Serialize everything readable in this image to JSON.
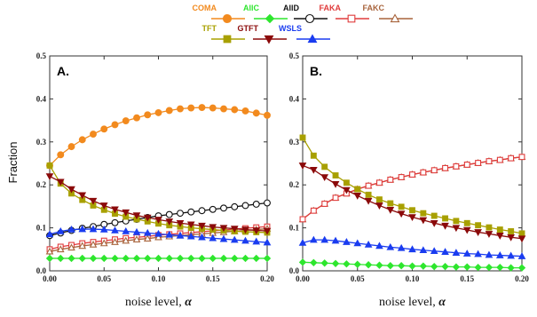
{
  "legend": [
    {
      "name": "COMA",
      "color": "#f28a1e",
      "marker": "circle-filled",
      "row": 0,
      "col": 0
    },
    {
      "name": "AllC",
      "color": "#2ee62e",
      "marker": "diamond-filled",
      "row": 0,
      "col": 1
    },
    {
      "name": "AllD",
      "color": "#111111",
      "marker": "circle-open",
      "row": 0,
      "col": 2
    },
    {
      "name": "FAKA",
      "color": "#e03b3b",
      "marker": "square-open",
      "row": 0,
      "col": 3
    },
    {
      "name": "FAKC",
      "color": "#a8643c",
      "marker": "triangle-open",
      "row": 0,
      "col": 4
    },
    {
      "name": "TFT",
      "color": "#a8a000",
      "marker": "square-filled",
      "row": 1,
      "col": 0
    },
    {
      "name": "GTFT",
      "color": "#8b0a0a",
      "marker": "triangle-down-filled",
      "row": 1,
      "col": 1
    },
    {
      "name": "WSLS",
      "color": "#1a3cf0",
      "marker": "triangle-up-filled",
      "row": 1,
      "col": 2
    }
  ],
  "chart_data": [
    {
      "type": "line",
      "panel_label": "A.",
      "xlabel": "noise level, α",
      "ylabel": "Fraction",
      "xlim": [
        0,
        0.2
      ],
      "ylim": [
        0,
        0.5
      ],
      "xticks": [
        "0.00",
        "0.05",
        "0.10",
        "0.15",
        "0.20"
      ],
      "yticks": [
        "0.0",
        "0.1",
        "0.2",
        "0.3",
        "0.4",
        "0.5"
      ],
      "x": [
        0,
        0.01,
        0.02,
        0.03,
        0.04,
        0.05,
        0.06,
        0.07,
        0.08,
        0.09,
        0.1,
        0.11,
        0.12,
        0.13,
        0.14,
        0.15,
        0.16,
        0.17,
        0.18,
        0.19,
        0.2
      ],
      "series": [
        {
          "name": "COMA",
          "values": [
            0.245,
            0.27,
            0.289,
            0.305,
            0.318,
            0.33,
            0.34,
            0.349,
            0.356,
            0.363,
            0.368,
            0.373,
            0.377,
            0.379,
            0.38,
            0.379,
            0.377,
            0.375,
            0.372,
            0.367,
            0.362
          ]
        },
        {
          "name": "AllC",
          "values": [
            0.029,
            0.029,
            0.029,
            0.029,
            0.029,
            0.029,
            0.029,
            0.029,
            0.029,
            0.029,
            0.029,
            0.029,
            0.029,
            0.029,
            0.029,
            0.029,
            0.029,
            0.029,
            0.029,
            0.029,
            0.029
          ]
        },
        {
          "name": "AllD",
          "values": [
            0.082,
            0.088,
            0.094,
            0.099,
            0.103,
            0.108,
            0.112,
            0.116,
            0.12,
            0.124,
            0.128,
            0.131,
            0.134,
            0.137,
            0.14,
            0.143,
            0.146,
            0.149,
            0.152,
            0.155,
            0.158
          ]
        },
        {
          "name": "FAKA",
          "values": [
            0.05,
            0.056,
            0.06,
            0.064,
            0.067,
            0.07,
            0.073,
            0.076,
            0.078,
            0.08,
            0.083,
            0.085,
            0.087,
            0.089,
            0.091,
            0.093,
            0.095,
            0.097,
            0.099,
            0.101,
            0.103
          ]
        },
        {
          "name": "FAKC",
          "values": [
            0.045,
            0.05,
            0.054,
            0.058,
            0.061,
            0.064,
            0.067,
            0.07,
            0.073,
            0.075,
            0.078,
            0.08,
            0.082,
            0.084,
            0.086,
            0.088,
            0.09,
            0.092,
            0.094,
            0.096,
            0.098
          ]
        },
        {
          "name": "TFT",
          "values": [
            0.245,
            0.203,
            0.18,
            0.165,
            0.152,
            0.142,
            0.133,
            0.126,
            0.12,
            0.115,
            0.11,
            0.106,
            0.103,
            0.1,
            0.098,
            0.096,
            0.094,
            0.092,
            0.091,
            0.09,
            0.089
          ]
        },
        {
          "name": "GTFT",
          "values": [
            0.22,
            0.207,
            0.19,
            0.176,
            0.163,
            0.152,
            0.143,
            0.136,
            0.129,
            0.124,
            0.119,
            0.115,
            0.111,
            0.108,
            0.105,
            0.102,
            0.1,
            0.098,
            0.096,
            0.094,
            0.093
          ]
        },
        {
          "name": "WSLS",
          "values": [
            0.085,
            0.092,
            0.096,
            0.097,
            0.097,
            0.096,
            0.094,
            0.092,
            0.09,
            0.088,
            0.086,
            0.084,
            0.082,
            0.08,
            0.078,
            0.076,
            0.074,
            0.072,
            0.07,
            0.068,
            0.066
          ]
        }
      ]
    },
    {
      "type": "line",
      "panel_label": "B.",
      "xlabel": "noise level, α",
      "ylabel": "",
      "xlim": [
        0,
        0.2
      ],
      "ylim": [
        0,
        0.5
      ],
      "xticks": [
        "0.00",
        "0.05",
        "0.10",
        "0.15",
        "0.20"
      ],
      "yticks": [
        "0.0",
        "0.1",
        "0.2",
        "0.3",
        "0.4",
        "0.5"
      ],
      "x": [
        0,
        0.01,
        0.02,
        0.03,
        0.04,
        0.05,
        0.06,
        0.07,
        0.08,
        0.09,
        0.1,
        0.11,
        0.12,
        0.13,
        0.14,
        0.15,
        0.16,
        0.17,
        0.18,
        0.19,
        0.2
      ],
      "series": [
        {
          "name": "AllC",
          "values": [
            0.02,
            0.019,
            0.018,
            0.017,
            0.016,
            0.015,
            0.014,
            0.013,
            0.012,
            0.012,
            0.011,
            0.011,
            0.01,
            0.01,
            0.009,
            0.009,
            0.008,
            0.008,
            0.008,
            0.007,
            0.007
          ]
        },
        {
          "name": "FAKC",
          "values": [
            0.12,
            0.14,
            0.156,
            0.17,
            0.18,
            0.19,
            0.198,
            0.205,
            0.212,
            0.218,
            0.224,
            0.229,
            0.234,
            0.239,
            0.243,
            0.247,
            0.251,
            0.255,
            0.258,
            0.262,
            0.265
          ]
        },
        {
          "name": "FAKA",
          "values": [
            0.12,
            0.14,
            0.156,
            0.17,
            0.18,
            0.19,
            0.198,
            0.205,
            0.212,
            0.218,
            0.224,
            0.229,
            0.234,
            0.239,
            0.243,
            0.247,
            0.251,
            0.255,
            0.258,
            0.262,
            0.265
          ]
        },
        {
          "name": "TFT",
          "values": [
            0.31,
            0.268,
            0.242,
            0.222,
            0.205,
            0.19,
            0.177,
            0.166,
            0.157,
            0.149,
            0.141,
            0.134,
            0.128,
            0.122,
            0.116,
            0.111,
            0.106,
            0.101,
            0.096,
            0.092,
            0.087
          ]
        },
        {
          "name": "GTFT",
          "values": [
            0.245,
            0.235,
            0.218,
            0.202,
            0.188,
            0.175,
            0.163,
            0.152,
            0.142,
            0.133,
            0.125,
            0.118,
            0.111,
            0.105,
            0.1,
            0.095,
            0.09,
            0.086,
            0.082,
            0.078,
            0.075
          ]
        },
        {
          "name": "WSLS",
          "values": [
            0.065,
            0.072,
            0.072,
            0.07,
            0.067,
            0.064,
            0.061,
            0.058,
            0.055,
            0.053,
            0.05,
            0.048,
            0.046,
            0.044,
            0.042,
            0.04,
            0.039,
            0.037,
            0.036,
            0.035,
            0.034
          ]
        }
      ]
    }
  ]
}
